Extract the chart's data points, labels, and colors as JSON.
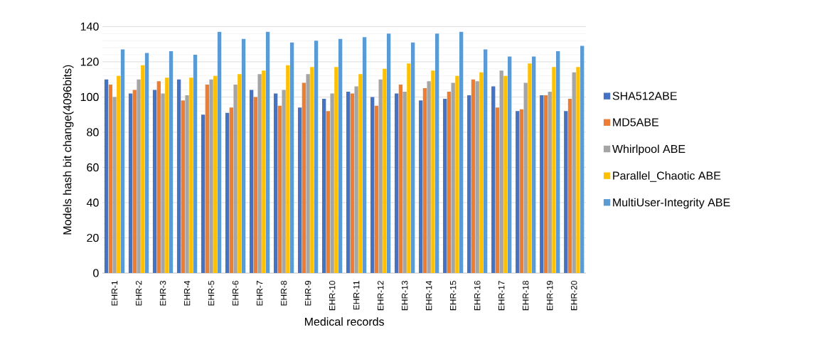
{
  "chart_data": {
    "type": "bar",
    "xlabel": "Medical records",
    "ylabel": "Models hash bit change(4096bits)",
    "categories": [
      "EHR-1",
      "EHR-2",
      "EHR-3",
      "EHR-4",
      "EHR-5",
      "EHR-6",
      "EHR-7",
      "EHR-8",
      "EHR-9",
      "EHR-10",
      "EHR-11",
      "EHR-12",
      "EHR-13",
      "EHR-14",
      "EHR-15",
      "EHR-16",
      "EHR-17",
      "EHR-18",
      "EHR-19",
      "EHR-20"
    ],
    "series": [
      {
        "name": "SHA512ABE",
        "color": "#4472c4",
        "values": [
          110,
          102,
          104,
          110,
          90,
          91,
          104,
          102,
          94,
          99,
          103,
          100,
          102,
          98,
          99,
          101,
          106,
          92,
          101,
          92
        ]
      },
      {
        "name": "MD5ABE",
        "color": "#ed7d31",
        "values": [
          107,
          104,
          109,
          98,
          107,
          94,
          100,
          95,
          108,
          92,
          102,
          95,
          107,
          105,
          103,
          110,
          94,
          93,
          101,
          99
        ]
      },
      {
        "name": "Whirlpool ABE",
        "color": "#a5a5a5",
        "values": [
          100,
          110,
          102,
          101,
          110,
          107,
          113,
          104,
          113,
          102,
          106,
          110,
          103,
          109,
          108,
          109,
          115,
          108,
          103,
          114
        ]
      },
      {
        "name": "Parallel_Chaotic ABE",
        "color": "#ffc000",
        "values": [
          112,
          118,
          111,
          111,
          112,
          113,
          115,
          118,
          117,
          117,
          113,
          116,
          119,
          115,
          112,
          114,
          112,
          119,
          117,
          117
        ]
      },
      {
        "name": "MultiUser-Integrity    ABE",
        "color": "#5b9bd5",
        "values": [
          127,
          125,
          126,
          124,
          137,
          133,
          137,
          131,
          132,
          133,
          134,
          136,
          131,
          136,
          137,
          127,
          123,
          123,
          126,
          129
        ]
      }
    ],
    "ylim": [
      0,
      140
    ],
    "yticks": [
      0,
      20,
      40,
      60,
      80,
      100,
      120,
      140
    ],
    "grid": "y",
    "legend": "right"
  }
}
